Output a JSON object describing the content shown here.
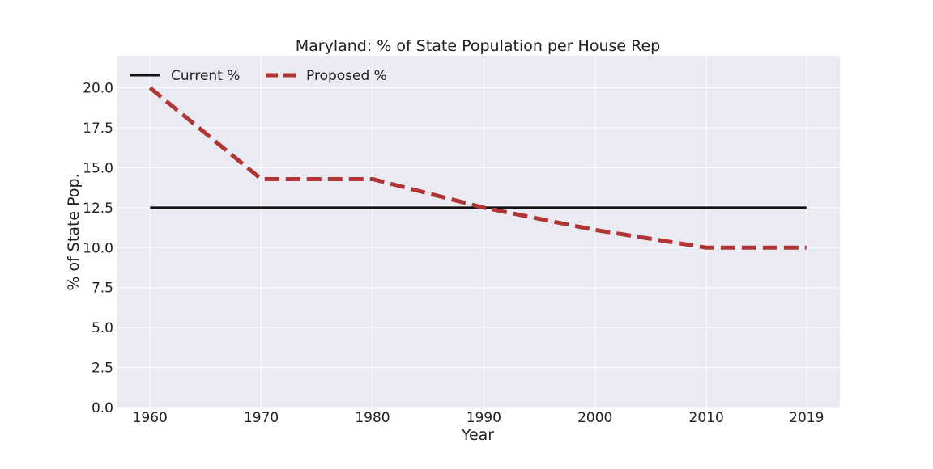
{
  "chart_data": {
    "type": "line",
    "title": "Maryland: % of State Population per House Rep",
    "xlabel": "Year",
    "ylabel": "% of State Pop.",
    "x": [
      1960,
      1970,
      1980,
      1990,
      2000,
      2010,
      2019
    ],
    "x_ticks": [
      "1960",
      "1970",
      "1980",
      "1990",
      "2000",
      "2010",
      "2019"
    ],
    "y_ticks": [
      "0.0",
      "2.5",
      "5.0",
      "7.5",
      "10.0",
      "12.5",
      "15.0",
      "17.5",
      "20.0"
    ],
    "ylim": [
      0,
      22
    ],
    "xlim": [
      1957,
      2022
    ],
    "grid": true,
    "legend_position": "top-left",
    "series": [
      {
        "name": "Current %",
        "values": [
          12.5,
          12.5,
          12.5,
          12.5,
          12.5,
          12.5,
          12.5
        ],
        "color": "#111111",
        "style": "solid"
      },
      {
        "name": "Proposed %",
        "values": [
          20.0,
          14.29,
          14.29,
          12.5,
          11.11,
          10.0,
          10.0
        ],
        "color": "#b03535",
        "style": "dashed"
      }
    ],
    "colors": {
      "plot_background": "#eaeaf2",
      "grid": "#ffffff"
    }
  }
}
